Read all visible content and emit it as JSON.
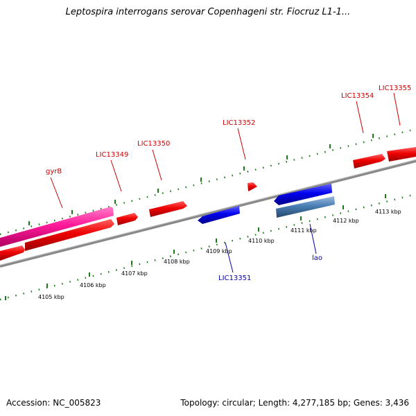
{
  "title": "Leptospira interrogans serovar Copenhageni str. Fiocruz L1-1...",
  "footer": {
    "accession": "Accession: NC_005823",
    "summary": "Topology: circular; Length: 4,277,185 bp; Genes: 3,436"
  },
  "colors": {
    "forward_gene": "#ee0000",
    "reverse_gene": "#0000ee",
    "highlight_gene": "#ff2aa0",
    "steelblue_gene": "#4a7fb5",
    "tick": "#1a7a1a",
    "backbone": "#888888"
  },
  "gene_labels_top": [
    "gyrB",
    "LIC13349",
    "LIC13350",
    "LIC13352",
    "LIC13354",
    "LIC13355"
  ],
  "gene_labels_bottom": [
    "LIC13351",
    "lao"
  ],
  "scale_labels": [
    "4105 kbp",
    "4106 kbp",
    "4107 kbp",
    "4108 kbp",
    "4109 kbp",
    "4110 kbp",
    "4111 kbp",
    "4112 kbp",
    "4113 kbp"
  ]
}
